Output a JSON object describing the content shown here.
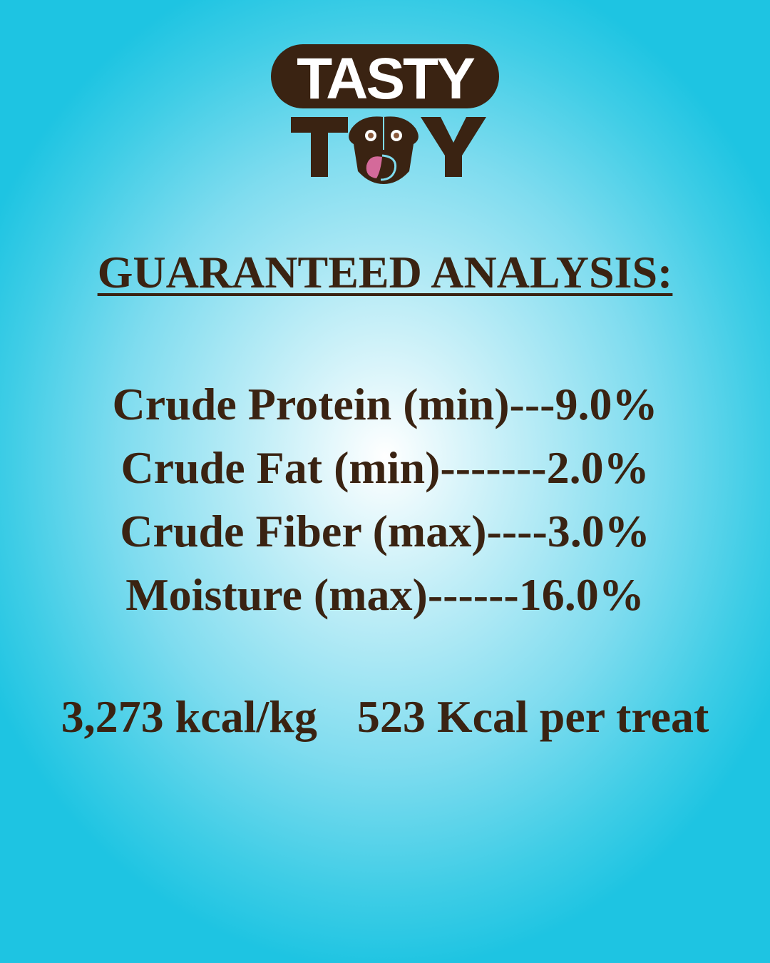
{
  "logo": {
    "text": "TASTY TOY",
    "colors": {
      "brown": "#3a2312",
      "tongue": "#d46a9a",
      "eyes": "#8a5a3c"
    }
  },
  "heading": "GUARANTEED ANALYSIS:",
  "analysis": [
    {
      "text": "Crude Protein (min)---9.0%"
    },
    {
      "text": "Crude Fat (min)-------2.0%"
    },
    {
      "text": "Crude Fiber (max)----3.0%"
    },
    {
      "text": "Moisture (max)------16.0%"
    }
  ],
  "calories": {
    "per_kg": "3,273 kcal/kg",
    "per_treat": "523 Kcal per treat"
  },
  "colors": {
    "text": "#3a2312",
    "background_edge": "#1ec4e2",
    "background_center": "#ffffff"
  }
}
